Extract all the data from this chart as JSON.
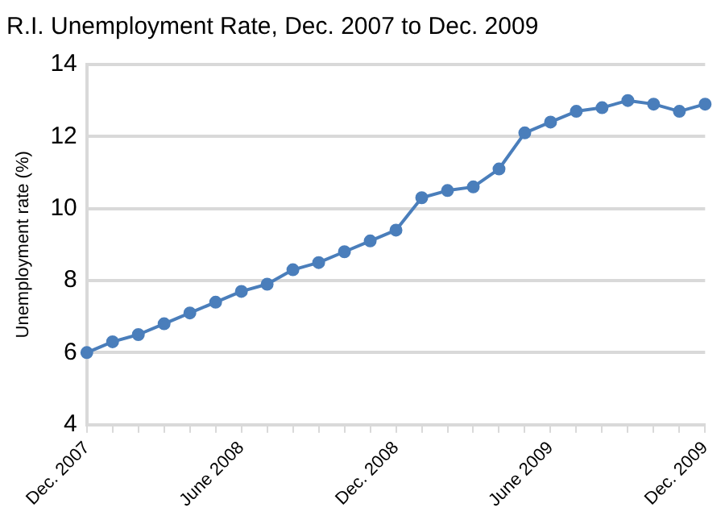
{
  "chart_data": {
    "type": "line",
    "title": "R.I. Unemployment Rate, Dec. 2007 to Dec. 2009",
    "ylabel": "Unemployment rate (%)",
    "categories": [
      "Dec. 2007",
      null,
      null,
      null,
      null,
      null,
      "June 2008",
      null,
      null,
      null,
      null,
      null,
      "Dec. 2008",
      null,
      null,
      null,
      null,
      null,
      "June 2009",
      null,
      null,
      null,
      null,
      null,
      "Dec. 2009"
    ],
    "series": [
      {
        "color": "#4a7ebb",
        "values": [
          6.0,
          6.3,
          6.5,
          6.8,
          7.1,
          7.4,
          7.7,
          7.9,
          8.3,
          8.5,
          8.8,
          9.1,
          9.4,
          10.3,
          10.5,
          10.6,
          11.1,
          12.1,
          12.4,
          12.7,
          12.8,
          13.0,
          12.9,
          12.7,
          12.9
        ]
      }
    ],
    "ylim": [
      4,
      14
    ],
    "yticks": [
      4,
      6,
      8,
      10,
      12,
      14
    ],
    "grid": "y",
    "legend": false,
    "marker": "circle",
    "line_style": "solid"
  }
}
